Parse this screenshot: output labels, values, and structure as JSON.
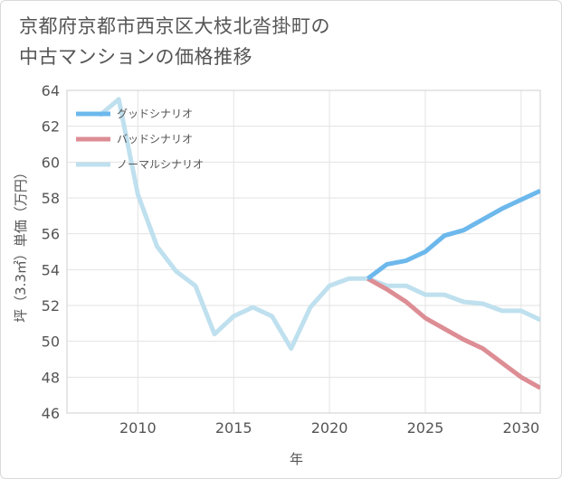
{
  "title_line1": "京都府京都市西京区大枝北沓掛町の",
  "title_line2": "中古マンションの価格推移",
  "chart_data": {
    "type": "line",
    "xlabel": "年",
    "ylabel": "坪（3.3㎡）単価（万円）",
    "xlim": [
      2006.3,
      2031
    ],
    "ylim": [
      46,
      64
    ],
    "xticks": [
      2010,
      2015,
      2020,
      2025,
      2030
    ],
    "yticks": [
      46,
      48,
      50,
      52,
      54,
      56,
      58,
      60,
      62,
      64
    ],
    "grid": true,
    "legend_position": "top-left",
    "series": [
      {
        "name": "グッドシナリオ",
        "color": "#6cb8ec",
        "x": [
          2022,
          2023,
          2024,
          2025,
          2026,
          2027,
          2028,
          2029,
          2030,
          2031
        ],
        "y": [
          53.5,
          54.3,
          54.5,
          55.0,
          55.9,
          56.2,
          56.8,
          57.4,
          57.9,
          58.4
        ]
      },
      {
        "name": "バッドシナリオ",
        "color": "#dd8d94",
        "x": [
          2022,
          2023,
          2024,
          2025,
          2026,
          2027,
          2028,
          2029,
          2030,
          2031
        ],
        "y": [
          53.5,
          52.9,
          52.2,
          51.3,
          50.7,
          50.1,
          49.6,
          48.8,
          48.0,
          47.4
        ]
      },
      {
        "name": "ノーマルシナリオ",
        "color": "#bfe0ee",
        "x": [
          2008,
          2009,
          2010,
          2011,
          2012,
          2013,
          2014,
          2015,
          2016,
          2017,
          2018,
          2019,
          2020,
          2021,
          2022,
          2023,
          2024,
          2025,
          2026,
          2027,
          2028,
          2029,
          2030,
          2031
        ],
        "y": [
          62.6,
          63.5,
          58.2,
          55.3,
          53.9,
          53.1,
          50.4,
          51.4,
          51.9,
          51.4,
          49.6,
          51.9,
          53.1,
          53.5,
          53.5,
          53.1,
          53.1,
          52.6,
          52.6,
          52.2,
          52.1,
          51.7,
          51.7,
          51.2
        ]
      }
    ]
  }
}
